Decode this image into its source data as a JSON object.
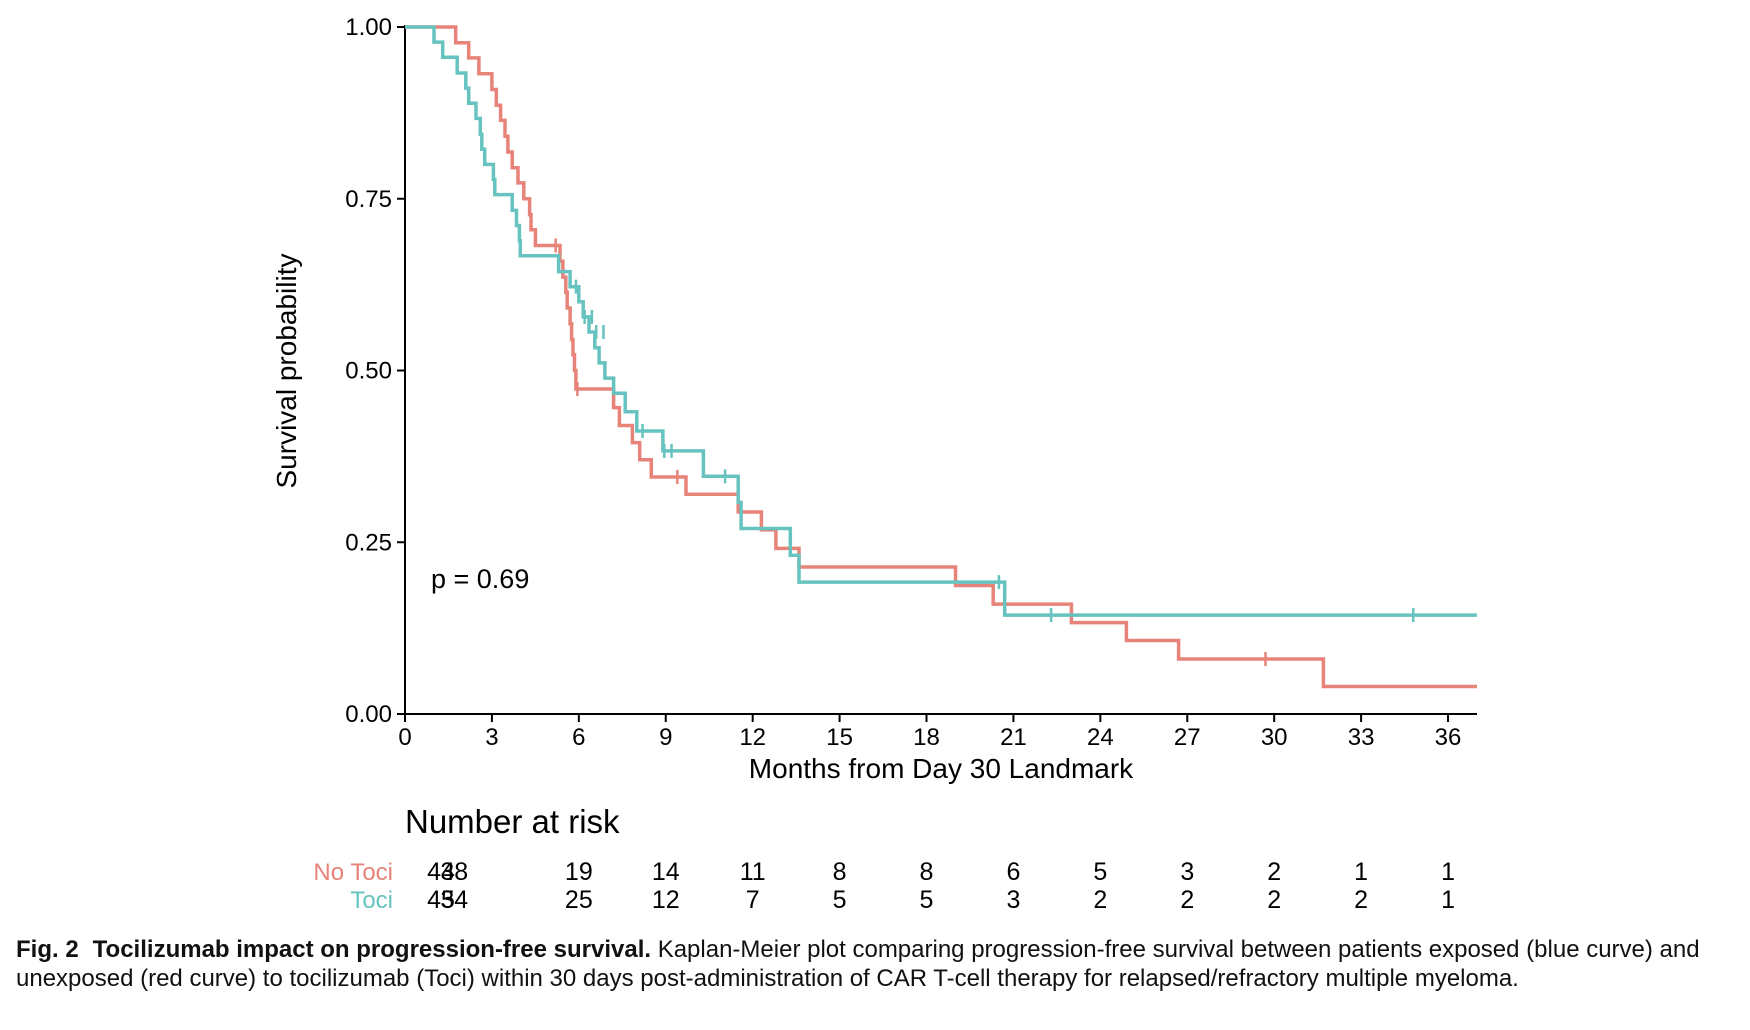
{
  "chart_data": {
    "type": "line",
    "xlabel": "Months from Day 30 Landmark",
    "ylabel": "Survival probability",
    "xlim": [
      0,
      37
    ],
    "ylim": [
      0,
      1
    ],
    "x_ticks": [
      "0",
      "3",
      "6",
      "9",
      "12",
      "15",
      "18",
      "21",
      "24",
      "27",
      "30",
      "33",
      "36"
    ],
    "y_ticks": [
      "0.00",
      "0.25",
      "0.50",
      "0.75",
      "1.00"
    ],
    "grid": false,
    "annotation": "p = 0.69",
    "series": [
      {
        "name": "No Toci",
        "color": "#E8837A",
        "steps": [
          [
            0,
            1.0
          ],
          [
            1.75,
            0.977
          ],
          [
            2.2,
            0.955
          ],
          [
            2.55,
            0.932
          ],
          [
            3.0,
            0.909
          ],
          [
            3.15,
            0.886
          ],
          [
            3.3,
            0.864
          ],
          [
            3.45,
            0.841
          ],
          [
            3.55,
            0.818
          ],
          [
            3.7,
            0.795
          ],
          [
            3.9,
            0.773
          ],
          [
            4.1,
            0.75
          ],
          [
            4.3,
            0.727
          ],
          [
            4.35,
            0.705
          ],
          [
            4.5,
            0.682
          ],
          [
            5.35,
            0.659
          ],
          [
            5.45,
            0.636
          ],
          [
            5.55,
            0.614
          ],
          [
            5.6,
            0.591
          ],
          [
            5.7,
            0.568
          ],
          [
            5.75,
            0.545
          ],
          [
            5.8,
            0.523
          ],
          [
            5.85,
            0.5
          ],
          [
            5.9,
            0.473
          ],
          [
            7.2,
            0.446
          ],
          [
            7.4,
            0.42
          ],
          [
            7.85,
            0.395
          ],
          [
            8.1,
            0.37
          ],
          [
            8.5,
            0.345
          ],
          [
            9.7,
            0.32
          ],
          [
            11.5,
            0.294
          ],
          [
            12.3,
            0.268
          ],
          [
            12.8,
            0.241
          ],
          [
            13.6,
            0.214
          ],
          [
            19.0,
            0.187
          ],
          [
            20.3,
            0.16
          ],
          [
            23.0,
            0.133
          ],
          [
            24.9,
            0.107
          ],
          [
            26.7,
            0.08
          ],
          [
            31.7,
            0.04
          ],
          [
            37.0,
            0.04
          ]
        ],
        "censors": [
          [
            5.2,
            0.682
          ],
          [
            5.95,
            0.473
          ],
          [
            9.4,
            0.345
          ],
          [
            29.7,
            0.08
          ]
        ]
      },
      {
        "name": "Toci",
        "color": "#67C3BF",
        "steps": [
          [
            0,
            1.0
          ],
          [
            1.0,
            0.978
          ],
          [
            1.3,
            0.956
          ],
          [
            1.8,
            0.933
          ],
          [
            2.1,
            0.911
          ],
          [
            2.2,
            0.889
          ],
          [
            2.45,
            0.867
          ],
          [
            2.6,
            0.844
          ],
          [
            2.65,
            0.822
          ],
          [
            2.75,
            0.8
          ],
          [
            3.05,
            0.778
          ],
          [
            3.1,
            0.756
          ],
          [
            3.7,
            0.733
          ],
          [
            3.85,
            0.711
          ],
          [
            3.95,
            0.689
          ],
          [
            3.98,
            0.667
          ],
          [
            5.3,
            0.644
          ],
          [
            5.7,
            0.622
          ],
          [
            6.0,
            0.6
          ],
          [
            6.15,
            0.578
          ],
          [
            6.35,
            0.556
          ],
          [
            6.55,
            0.533
          ],
          [
            6.7,
            0.511
          ],
          [
            6.9,
            0.489
          ],
          [
            7.2,
            0.467
          ],
          [
            7.6,
            0.44
          ],
          [
            8.0,
            0.412
          ],
          [
            8.9,
            0.383
          ],
          [
            10.3,
            0.346
          ],
          [
            11.5,
            0.308
          ],
          [
            11.6,
            0.27
          ],
          [
            13.3,
            0.231
          ],
          [
            13.6,
            0.192
          ],
          [
            20.7,
            0.144
          ],
          [
            37.0,
            0.144
          ]
        ],
        "censors": [
          [
            5.9,
            0.622
          ],
          [
            6.2,
            0.578
          ],
          [
            6.45,
            0.578
          ],
          [
            6.6,
            0.556
          ],
          [
            6.85,
            0.556
          ],
          [
            8.2,
            0.412
          ],
          [
            8.95,
            0.383
          ],
          [
            9.2,
            0.383
          ],
          [
            11.05,
            0.346
          ],
          [
            20.5,
            0.192
          ],
          [
            22.3,
            0.144
          ],
          [
            34.8,
            0.144
          ]
        ]
      }
    ]
  },
  "risk_table": {
    "title": "Number at risk",
    "time_points": [
      0,
      3,
      6,
      9,
      12,
      15,
      18,
      21,
      24,
      27,
      30,
      33,
      36
    ],
    "extra_column_time": 1.7,
    "rows": [
      {
        "label": "No Toci",
        "color": "#E8837A",
        "first": "44",
        "extra": "38",
        "values": [
          "19",
          "14",
          "11",
          "8",
          "8",
          "6",
          "5",
          "3",
          "2",
          "1",
          "1"
        ]
      },
      {
        "label": "Toci",
        "color": "#67C3BF",
        "first": "45",
        "extra": "34",
        "values": [
          "25",
          "12",
          "7",
          "5",
          "5",
          "3",
          "2",
          "2",
          "2",
          "2",
          "1"
        ]
      }
    ]
  },
  "caption": {
    "label": "Fig. 2",
    "title": "Tocilizumab impact on progression-free survival.",
    "text": "Kaplan-Meier plot comparing progression-free survival between patients exposed (blue curve) and unexposed (red curve) to tocilizumab (Toci) within 30 days post-administration of CAR T-cell therapy for relapsed/refractory multiple myeloma."
  }
}
